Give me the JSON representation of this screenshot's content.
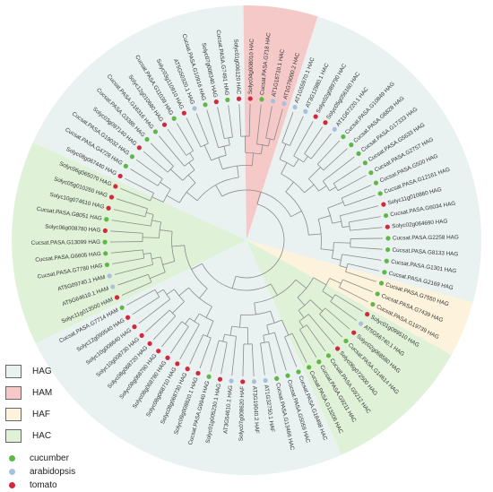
{
  "colors": {
    "HAG": "#e9f1f1",
    "HAM": "#f6c9c9",
    "HAF": "#fdf3dc",
    "HAC": "#dff2d8",
    "cucumber": "#5fb846",
    "arabidopsis": "#a9bfdc",
    "tomato": "#d1293f"
  },
  "legend": {
    "groups": [
      {
        "name": "HAG",
        "color": "#e9f1f1"
      },
      {
        "name": "HAM",
        "color": "#f6c9c9"
      },
      {
        "name": "HAF",
        "color": "#fdf3dc"
      },
      {
        "name": "HAC",
        "color": "#dff2d8"
      }
    ],
    "species": [
      {
        "name": "cucumber",
        "color": "#5fb846"
      },
      {
        "name": "arabidopsis",
        "color": "#a9bfdc"
      },
      {
        "name": "tomato",
        "color": "#d1293f"
      }
    ]
  },
  "tree": {
    "sectors": [
      {
        "group": "HAG",
        "from": 0,
        "to": 15
      },
      {
        "group": "HAM",
        "from": 15,
        "to": 19
      },
      {
        "group": "HAG",
        "from": 19,
        "to": 38
      },
      {
        "group": "HAF",
        "from": 38,
        "to": 41
      },
      {
        "group": "HAC",
        "from": 41,
        "to": 49
      },
      {
        "group": "HAG",
        "from": 49,
        "to": 68
      },
      {
        "group": "HAC",
        "from": 68,
        "to": 79
      },
      {
        "group": "HAG",
        "from": 79,
        "to": 86
      }
    ],
    "leaves": [
      {
        "label": "Solyc06g065070 HAG",
        "species": "tomato"
      },
      {
        "label": "Solyc08g067440 HAG",
        "species": "tomato"
      },
      {
        "label": "Cucsat.PASA.G4728 HAG",
        "species": "cucumber"
      },
      {
        "label": "Cucsat.PASA.G19032 HAG",
        "species": "cucumber"
      },
      {
        "label": "Solyc03g097140 HAG",
        "species": "tomato"
      },
      {
        "label": "Cucsat.PASA.G3385 HAG",
        "species": "cucumber"
      },
      {
        "label": "Cucsat.PASA.G16316 HAG",
        "species": "cucumber"
      },
      {
        "label": "Solyc12g010680 HAG",
        "species": "tomato"
      },
      {
        "label": "Cucsat.PASA.G11039 HAG",
        "species": "cucumber"
      },
      {
        "label": "Solyc03g110910 HAG",
        "species": "tomato"
      },
      {
        "label": "AT5G50320.1 HAG",
        "species": "arabidopsis"
      },
      {
        "label": "Cucsat.PASA.G10916 HAG",
        "species": "cucumber"
      },
      {
        "label": "Solyc07g008340 HAG",
        "species": "tomato"
      },
      {
        "label": "Cucsat.PASA.G7491 HAG",
        "species": "cucumber"
      },
      {
        "label": "Solyc01g006120 HAC",
        "species": "tomato"
      },
      {
        "label": "Solyc04g008010 HAC",
        "species": "tomato"
      },
      {
        "label": "Cucsat.PASA.G718 HAC",
        "species": "cucumber"
      },
      {
        "label": "AT1G16710.1 HAC",
        "species": "arabidopsis"
      },
      {
        "label": "AT1G79000.2 HAC",
        "species": "arabidopsis"
      },
      {
        "label": "AT1G55970.1 HAC",
        "species": "arabidopsis"
      },
      {
        "label": "AT3G12980.1 HAC",
        "species": "arabidopsis"
      },
      {
        "label": "Solyc02g089790 HAC",
        "species": "tomato"
      },
      {
        "label": "Solyc05g056160 HAC",
        "species": "tomato"
      },
      {
        "label": "AT1G67220.1 HAC",
        "species": "arabidopsis"
      },
      {
        "label": "Cucsat.PASA.G10849 HAG",
        "species": "cucumber"
      },
      {
        "label": "Cucsat.PASA.G6828 HAG",
        "species": "cucumber"
      },
      {
        "label": "Cucsat.PASA.G17333 HAG",
        "species": "cucumber"
      },
      {
        "label": "Cucsat.PASA.G5633 HAG",
        "species": "cucumber"
      },
      {
        "label": "Cucsat.PASA.G2757 HAG",
        "species": "cucumber"
      },
      {
        "label": "Cucsat.PASA.G500 HAG",
        "species": "cucumber"
      },
      {
        "label": "Cucsat.PASA.G12161 HAG",
        "species": "cucumber"
      },
      {
        "label": "Solyc11g010860 HAG",
        "species": "tomato"
      },
      {
        "label": "Cucsat.PASA.G6034 HAG",
        "species": "cucumber"
      },
      {
        "label": "Solyc02g064690 HAG",
        "species": "tomato"
      },
      {
        "label": "Cucsat.PASA.G2258 HAG",
        "species": "cucumber"
      },
      {
        "label": "Cucsat.PASA.G8133 HAG",
        "species": "cucumber"
      },
      {
        "label": "Cucsat.PASA.G1301 HAG",
        "species": "cucumber"
      },
      {
        "label": "Cucsat.PASA.G2169 HAG",
        "species": "cucumber"
      },
      {
        "label": "Cucsat.PASA.G7550 HAG",
        "species": "cucumber"
      },
      {
        "label": "Cucsat.PASA.G7439 HAG",
        "species": "cucumber"
      },
      {
        "label": "Cucsat.PASA.G19739 HAG",
        "species": "cucumber"
      },
      {
        "label": "Solyc01g099510 HAG",
        "species": "tomato"
      },
      {
        "label": "AT5G56740.1 HAG",
        "species": "arabidopsis"
      },
      {
        "label": "Solyc02g068580 HAG",
        "species": "tomato"
      },
      {
        "label": "Cucsat.PASA.G14614 HAG",
        "species": "cucumber"
      },
      {
        "label": "Solyc06g072500 HAG",
        "species": "tomato"
      },
      {
        "label": "Cucsat.PASA.G9212 HAC",
        "species": "cucumber"
      },
      {
        "label": "Cucsat.PASA.G9211 HAC",
        "species": "cucumber"
      },
      {
        "label": "Cucsat.PASA.G13206 HAC",
        "species": "cucumber"
      },
      {
        "label": "Cucsat.PASA.G18498 HAC",
        "species": "cucumber"
      },
      {
        "label": "Cucsat.PASA.G5059 HAC",
        "species": "cucumber"
      },
      {
        "label": "Cucsat.PASA.G13466 HAC",
        "species": "cucumber"
      },
      {
        "label": "AT1G32750.1 HAF",
        "species": "arabidopsis"
      },
      {
        "label": "AT3G19040.2 HAF",
        "species": "arabidopsis"
      },
      {
        "label": "Solyc07g008620 HAF",
        "species": "tomato"
      },
      {
        "label": "AT3G54610.1 HAG",
        "species": "arabidopsis"
      },
      {
        "label": "Solyc01g005230.1 HAG",
        "species": "tomato"
      },
      {
        "label": "Cucsat.PASA.G9940 HAG",
        "species": "cucumber"
      },
      {
        "label": "Solyc09g008820.1 HAG",
        "species": "tomato"
      },
      {
        "label": "Solyc08g068730 HAG",
        "species": "tomato"
      },
      {
        "label": "Solyc08g068710 HAG",
        "species": "tomato"
      },
      {
        "label": "Solyc08g068780 HAG",
        "species": "tomato"
      },
      {
        "label": "Solyc08g068790 HAG",
        "species": "tomato"
      },
      {
        "label": "Solyc08g068720 HAG",
        "species": "tomato"
      },
      {
        "label": "Solyc10g008730 HAG",
        "species": "tomato"
      },
      {
        "label": "Solyc10g008640 HAG",
        "species": "tomato"
      },
      {
        "label": "Solyc12g099540 HAG",
        "species": "tomato"
      },
      {
        "label": "Cucsat.PASA.G7714 HAM",
        "species": "cucumber"
      },
      {
        "label": "Solyc11g013500 HAM",
        "species": "tomato"
      },
      {
        "label": "AT5G64610.1 HAM",
        "species": "arabidopsis"
      },
      {
        "label": "AT5G09740.1 HAM",
        "species": "arabidopsis"
      },
      {
        "label": "Cucsat.PASA.G7780 HAG",
        "species": "cucumber"
      },
      {
        "label": "Cucsat.PASA.G6605 HAG",
        "species": "cucumber"
      },
      {
        "label": "Cucsat.PASA.G13099 HAG",
        "species": "cucumber"
      },
      {
        "label": "Solyc06g008780 HAG",
        "species": "tomato"
      },
      {
        "label": "Cucsat.PASA.G8051 HAG",
        "species": "cucumber"
      },
      {
        "label": "Solyc10g074610 HAG",
        "species": "tomato"
      },
      {
        "label": "Solyc05g010250 HAG",
        "species": "tomato"
      }
    ]
  }
}
